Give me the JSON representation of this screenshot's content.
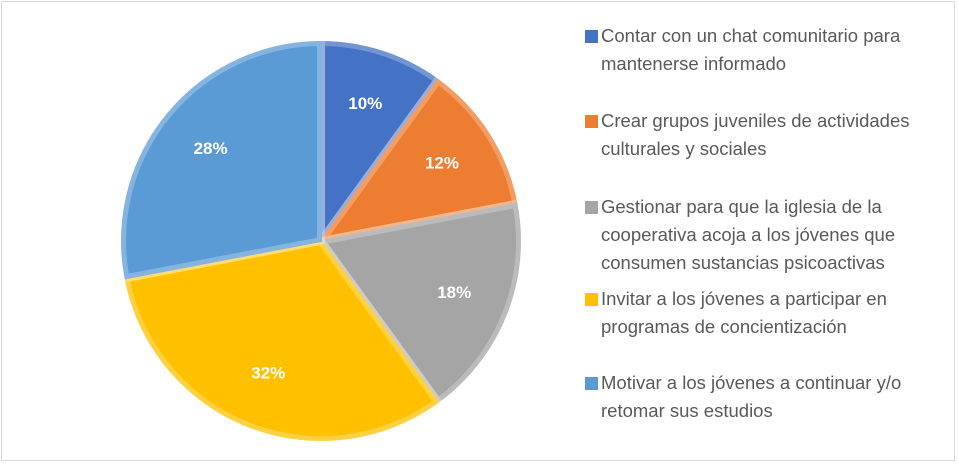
{
  "chart_data": {
    "type": "pie",
    "categories": [
      "Contar con un chat comunitario para mantenerse informado",
      "Crear grupos juveniles de actividades culturales y sociales",
      "Gestionar para que la iglesia de la cooperativa acoja a los jóvenes que consumen sustancias psicoactivas",
      "Invitar a los jóvenes a participar en programas de concientización",
      "Motivar a los jóvenes a continuar y/o retomar sus estudios"
    ],
    "values": [
      10,
      12,
      18,
      32,
      28
    ],
    "value_labels": [
      "10%",
      "12%",
      "18%",
      "32%",
      "28%"
    ],
    "colors": [
      "#4472c4",
      "#ed7d31",
      "#a5a5a5",
      "#ffc000",
      "#5b9bd5"
    ],
    "legend": "right"
  }
}
